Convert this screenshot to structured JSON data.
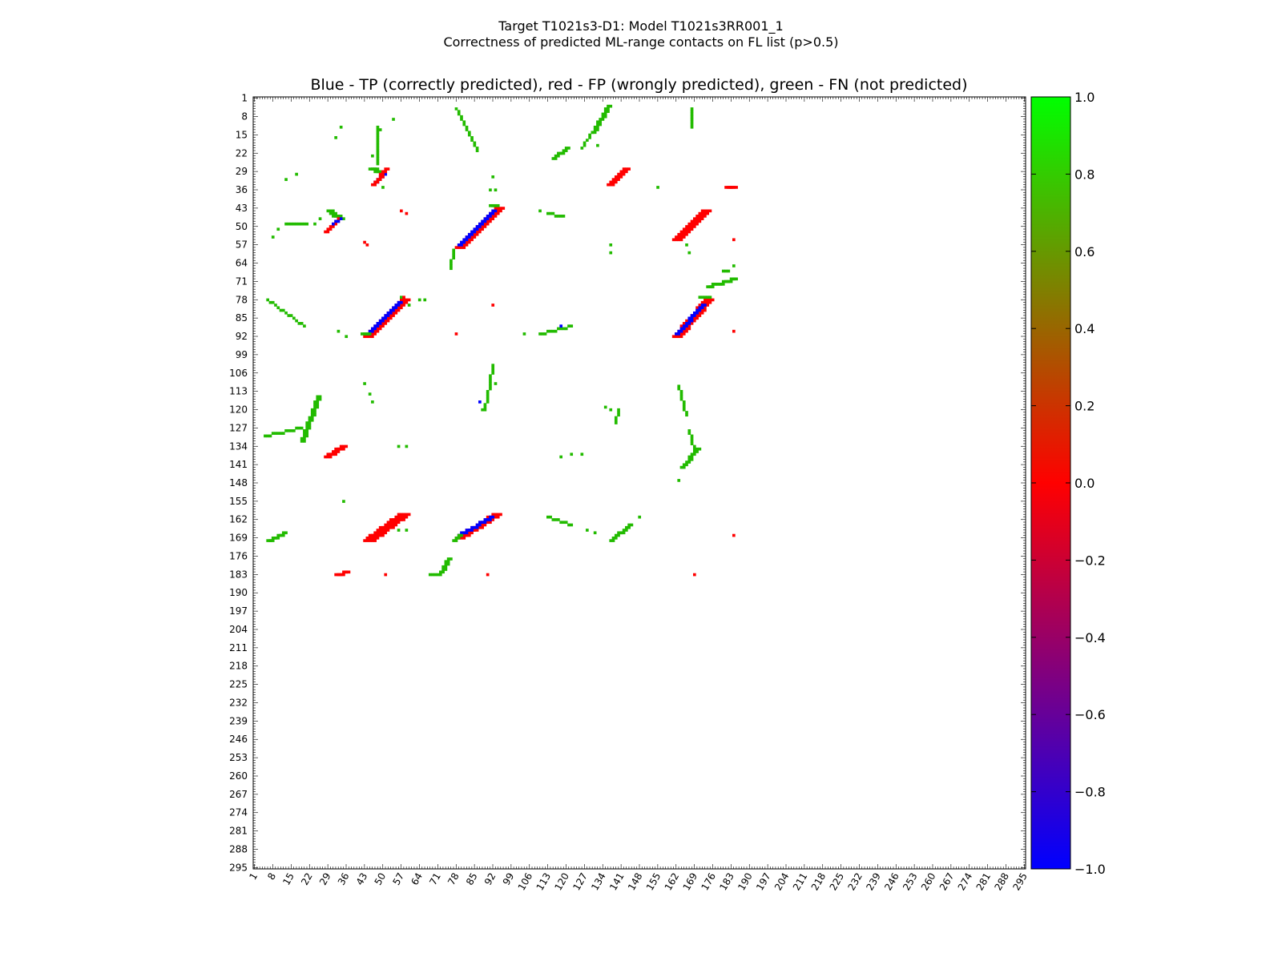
{
  "figure": {
    "suptitle_line1": "Target T1021s3-D1: Model T1021s3RR001_1",
    "suptitle_line2": "Correctness of predicted ML-range contacts on FL list (p>0.5)"
  },
  "chart_data": {
    "type": "heatmap",
    "title": "Blue - TP (correctly predicted), red - FP (wrongly predicted), green - FN (not predicted)",
    "xlim": [
      1,
      295
    ],
    "ylim": [
      1,
      295
    ],
    "y_inverted": true,
    "tick_labels": [
      "1",
      "8",
      "15",
      "22",
      "29",
      "36",
      "43",
      "50",
      "57",
      "64",
      "71",
      "78",
      "85",
      "92",
      "99",
      "106",
      "113",
      "120",
      "127",
      "134",
      "141",
      "148",
      "155",
      "162",
      "169",
      "176",
      "183",
      "190",
      "197",
      "204",
      "211",
      "218",
      "225",
      "232",
      "239",
      "246",
      "253",
      "260",
      "267",
      "274",
      "281",
      "288",
      "295"
    ],
    "colorbar": {
      "range": [
        -1.0,
        1.0
      ],
      "tick_labels": [
        "1.0",
        "0.8",
        "0.6",
        "0.4",
        "0.2",
        "0.0",
        "−0.2",
        "−0.4",
        "−0.6",
        "−0.8",
        "−1.0"
      ],
      "colors": [
        "#0000ff",
        "#ff0000",
        "#00ff00"
      ]
    },
    "legend": {
      "TP": {
        "value": -1,
        "color": "#0000ff"
      },
      "FP": {
        "value": 0,
        "color": "#ff0000"
      },
      "FN": {
        "value": 1,
        "color": "#22bb00"
      }
    },
    "segments": [
      {
        "cls": "FN",
        "x1": 136,
        "y1": 4,
        "x2": 130,
        "y2": 14,
        "w": 2
      },
      {
        "cls": "FN",
        "x1": 130,
        "y1": 14,
        "x2": 126,
        "y2": 20,
        "w": 1
      },
      {
        "cls": "FN",
        "x1": 168,
        "y1": 5,
        "x2": 168,
        "y2": 12,
        "w": 1
      },
      {
        "cls": "FN",
        "x1": 48,
        "y1": 12,
        "x2": 48,
        "y2": 26,
        "w": 1
      },
      {
        "cls": "FN",
        "x1": 78,
        "y1": 5,
        "x2": 86,
        "y2": 21,
        "w": 1
      },
      {
        "cls": "FN",
        "x1": 115,
        "y1": 24,
        "x2": 120,
        "y2": 20,
        "w": 2
      },
      {
        "cls": "FN",
        "x1": 45,
        "y1": 28,
        "x2": 48,
        "y2": 29,
        "w": 3
      },
      {
        "cls": "TP",
        "x1": 47,
        "y1": 33,
        "x2": 50,
        "y2": 30,
        "w": 2
      },
      {
        "cls": "FP",
        "x1": 46,
        "y1": 34,
        "x2": 51,
        "y2": 28,
        "w": 2
      },
      {
        "cls": "FP",
        "x1": 136,
        "y1": 34,
        "x2": 142,
        "y2": 28,
        "w": 3
      },
      {
        "cls": "FP",
        "x1": 181,
        "y1": 35,
        "x2": 183,
        "y2": 35,
        "w": 3
      },
      {
        "cls": "FN",
        "x1": 29,
        "y1": 44,
        "x2": 33,
        "y2": 47,
        "w": 3
      },
      {
        "cls": "FP",
        "x1": 28,
        "y1": 52,
        "x2": 33,
        "y2": 47,
        "w": 2
      },
      {
        "cls": "TP",
        "x1": 31,
        "y1": 49,
        "x2": 34,
        "y2": 47,
        "w": 1
      },
      {
        "cls": "FN",
        "x1": 13,
        "y1": 49,
        "x2": 21,
        "y2": 49,
        "w": 1
      },
      {
        "cls": "FP",
        "x1": 78,
        "y1": 58,
        "x2": 93,
        "y2": 43,
        "w": 4
      },
      {
        "cls": "TP",
        "x1": 79,
        "y1": 57,
        "x2": 92,
        "y2": 44,
        "w": 2
      },
      {
        "cls": "FN",
        "x1": 91,
        "y1": 42,
        "x2": 93,
        "y2": 42,
        "w": 2
      },
      {
        "cls": "FP",
        "x1": 161,
        "y1": 55,
        "x2": 172,
        "y2": 44,
        "w": 4
      },
      {
        "cls": "FN",
        "x1": 77,
        "y1": 59,
        "x2": 76,
        "y2": 66,
        "w": 1
      },
      {
        "cls": "FN",
        "x1": 174,
        "y1": 73,
        "x2": 184,
        "y2": 70,
        "w": 2
      },
      {
        "cls": "FN",
        "x1": 180,
        "y1": 67,
        "x2": 182,
        "y2": 67,
        "w": 1
      },
      {
        "cls": "FP",
        "x1": 43,
        "y1": 92,
        "x2": 57,
        "y2": 78,
        "w": 4
      },
      {
        "cls": "TP",
        "x1": 44,
        "y1": 91,
        "x2": 56,
        "y2": 79,
        "w": 2
      },
      {
        "cls": "FN",
        "x1": 42,
        "y1": 91,
        "x2": 44,
        "y2": 91,
        "w": 2
      },
      {
        "cls": "FP",
        "x1": 161,
        "y1": 92,
        "x2": 173,
        "y2": 78,
        "w": 4
      },
      {
        "cls": "TP",
        "x1": 162,
        "y1": 91,
        "x2": 172,
        "y2": 80,
        "w": 2
      },
      {
        "cls": "FN",
        "x1": 171,
        "y1": 77,
        "x2": 175,
        "y2": 77,
        "w": 1
      },
      {
        "cls": "FN",
        "x1": 6,
        "y1": 78,
        "x2": 20,
        "y2": 88,
        "w": 1
      },
      {
        "cls": "FN",
        "x1": 110,
        "y1": 91,
        "x2": 122,
        "y2": 88,
        "w": 1
      },
      {
        "cls": "FN",
        "x1": 19,
        "y1": 132,
        "x2": 25,
        "y2": 115,
        "w": 2
      },
      {
        "cls": "FN",
        "x1": 5,
        "y1": 130,
        "x2": 19,
        "y2": 127,
        "w": 1
      },
      {
        "cls": "FN",
        "x1": 92,
        "y1": 104,
        "x2": 89,
        "y2": 120,
        "w": 1
      },
      {
        "cls": "FN",
        "x1": 163,
        "y1": 111,
        "x2": 166,
        "y2": 122,
        "w": 1
      },
      {
        "cls": "FN",
        "x1": 167,
        "y1": 128,
        "x2": 169,
        "y2": 135,
        "w": 1
      },
      {
        "cls": "FN",
        "x1": 164,
        "y1": 142,
        "x2": 170,
        "y2": 135,
        "w": 2
      },
      {
        "cls": "FP",
        "x1": 28,
        "y1": 138,
        "x2": 34,
        "y2": 134,
        "w": 3
      },
      {
        "cls": "FN",
        "x1": 140,
        "y1": 120,
        "x2": 139,
        "y2": 125,
        "w": 1
      },
      {
        "cls": "FP",
        "x1": 43,
        "y1": 170,
        "x2": 56,
        "y2": 160,
        "w": 5
      },
      {
        "cls": "FP",
        "x1": 78,
        "y1": 169,
        "x2": 92,
        "y2": 160,
        "w": 4
      },
      {
        "cls": "TP",
        "x1": 79,
        "y1": 168,
        "x2": 91,
        "y2": 161,
        "w": 2
      },
      {
        "cls": "FN",
        "x1": 77,
        "y1": 170,
        "x2": 79,
        "y2": 168,
        "w": 2
      },
      {
        "cls": "FN",
        "x1": 6,
        "y1": 170,
        "x2": 12,
        "y2": 167,
        "w": 2
      },
      {
        "cls": "FN",
        "x1": 137,
        "y1": 170,
        "x2": 144,
        "y2": 164,
        "w": 2
      },
      {
        "cls": "FN",
        "x1": 113,
        "y1": 161,
        "x2": 122,
        "y2": 164,
        "w": 1
      },
      {
        "cls": "FN",
        "x1": 72,
        "y1": 182,
        "x2": 75,
        "y2": 177,
        "w": 2
      },
      {
        "cls": "FN",
        "x1": 68,
        "y1": 183,
        "x2": 72,
        "y2": 183,
        "w": 1
      },
      {
        "cls": "FP",
        "x1": 32,
        "y1": 183,
        "x2": 36,
        "y2": 182,
        "w": 2
      },
      {
        "cls": "FN",
        "x1": 113,
        "y1": 45,
        "x2": 119,
        "y2": 46,
        "w": 1
      }
    ],
    "cells": [
      {
        "cls": "FN",
        "x": 34,
        "y": 12
      },
      {
        "cls": "FN",
        "x": 32,
        "y": 16
      },
      {
        "cls": "FN",
        "x": 49,
        "y": 13
      },
      {
        "cls": "FN",
        "x": 54,
        "y": 9
      },
      {
        "cls": "FN",
        "x": 46,
        "y": 23
      },
      {
        "cls": "FN",
        "x": 132,
        "y": 19
      },
      {
        "cls": "FN",
        "x": 13,
        "y": 32
      },
      {
        "cls": "FN",
        "x": 17,
        "y": 30
      },
      {
        "cls": "FN",
        "x": 92,
        "y": 31
      },
      {
        "cls": "FN",
        "x": 91,
        "y": 36
      },
      {
        "cls": "FN",
        "x": 93,
        "y": 36
      },
      {
        "cls": "FN",
        "x": 50,
        "y": 35
      },
      {
        "cls": "FN",
        "x": 155,
        "y": 35
      },
      {
        "cls": "FP",
        "x": 57,
        "y": 44
      },
      {
        "cls": "FP",
        "x": 59,
        "y": 45
      },
      {
        "cls": "FN",
        "x": 110,
        "y": 44
      },
      {
        "cls": "FN",
        "x": 26,
        "y": 47
      },
      {
        "cls": "FN",
        "x": 8,
        "y": 54
      },
      {
        "cls": "FN",
        "x": 10,
        "y": 51
      },
      {
        "cls": "FN",
        "x": 24,
        "y": 49
      },
      {
        "cls": "FP",
        "x": 43,
        "y": 56
      },
      {
        "cls": "FP",
        "x": 44,
        "y": 57
      },
      {
        "cls": "FN",
        "x": 137,
        "y": 57
      },
      {
        "cls": "FN",
        "x": 137,
        "y": 60
      },
      {
        "cls": "FN",
        "x": 166,
        "y": 57
      },
      {
        "cls": "FN",
        "x": 167,
        "y": 60
      },
      {
        "cls": "FP",
        "x": 184,
        "y": 55
      },
      {
        "cls": "FP",
        "x": 184,
        "y": 90
      },
      {
        "cls": "FN",
        "x": 184,
        "y": 65
      },
      {
        "cls": "FN",
        "x": 57,
        "y": 77
      },
      {
        "cls": "FP",
        "x": 58,
        "y": 77
      },
      {
        "cls": "FN",
        "x": 60,
        "y": 80
      },
      {
        "cls": "FN",
        "x": 64,
        "y": 78
      },
      {
        "cls": "FN",
        "x": 66,
        "y": 78
      },
      {
        "cls": "FP",
        "x": 92,
        "y": 80
      },
      {
        "cls": "TP",
        "x": 118,
        "y": 88
      },
      {
        "cls": "FN",
        "x": 104,
        "y": 91
      },
      {
        "cls": "FN",
        "x": 33,
        "y": 90
      },
      {
        "cls": "FN",
        "x": 36,
        "y": 92
      },
      {
        "cls": "FP",
        "x": 78,
        "y": 91
      },
      {
        "cls": "FN",
        "x": 92,
        "y": 103
      },
      {
        "cls": "FN",
        "x": 93,
        "y": 110
      },
      {
        "cls": "FN",
        "x": 43,
        "y": 110
      },
      {
        "cls": "FN",
        "x": 45,
        "y": 114
      },
      {
        "cls": "FN",
        "x": 46,
        "y": 117
      },
      {
        "cls": "TP",
        "x": 87,
        "y": 117
      },
      {
        "cls": "FN",
        "x": 88,
        "y": 120
      },
      {
        "cls": "FN",
        "x": 135,
        "y": 119
      },
      {
        "cls": "FN",
        "x": 137,
        "y": 120
      },
      {
        "cls": "FN",
        "x": 56,
        "y": 134
      },
      {
        "cls": "FN",
        "x": 59,
        "y": 134
      },
      {
        "cls": "FN",
        "x": 118,
        "y": 138
      },
      {
        "cls": "FN",
        "x": 122,
        "y": 137
      },
      {
        "cls": "FN",
        "x": 126,
        "y": 137
      },
      {
        "cls": "FN",
        "x": 163,
        "y": 147
      },
      {
        "cls": "FN",
        "x": 35,
        "y": 155
      },
      {
        "cls": "FN",
        "x": 56,
        "y": 166
      },
      {
        "cls": "FN",
        "x": 59,
        "y": 166
      },
      {
        "cls": "FN",
        "x": 148,
        "y": 161
      },
      {
        "cls": "FN",
        "x": 128,
        "y": 166
      },
      {
        "cls": "FN",
        "x": 131,
        "y": 167
      },
      {
        "cls": "FP",
        "x": 184,
        "y": 168
      },
      {
        "cls": "FP",
        "x": 51,
        "y": 183
      },
      {
        "cls": "FP",
        "x": 90,
        "y": 183
      },
      {
        "cls": "FP",
        "x": 169,
        "y": 183
      }
    ]
  }
}
